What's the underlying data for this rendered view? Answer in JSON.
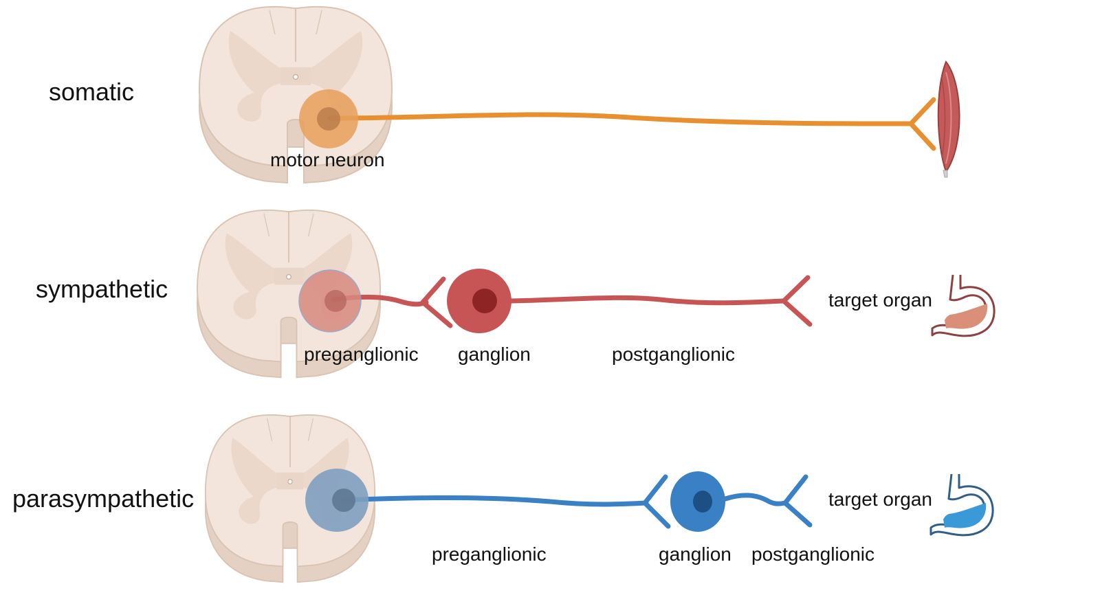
{
  "rows": [
    {
      "label": "somatic",
      "labels": {
        "neuron": "motor neuron"
      },
      "color": "#e8902f"
    },
    {
      "label": "sympathetic",
      "labels": {
        "pre": "preganglionic",
        "ganglion": "ganglion",
        "post": "postganglionic",
        "target": "target organ"
      },
      "color": "#c85555"
    },
    {
      "label": "parasympathetic",
      "labels": {
        "pre": "preganglionic",
        "ganglion": "ganglion",
        "post": "postganglionic",
        "target": "target organ"
      },
      "color": "#3a80c4"
    }
  ],
  "colors": {
    "cord_fill": "#f2e3d8",
    "cord_gray": "#e6d3c5",
    "cord_edge": "#d9c3b3",
    "muscle": "#c45a5a",
    "stomach_outline_red": "#8f4040",
    "stomach_fill_red": "#d98f78",
    "stomach_outline_blue": "#2f5f88",
    "stomach_fill_blue": "#3a9ad8"
  },
  "icons": [
    "spinal-cord-icon",
    "muscle-icon",
    "stomach-icon"
  ]
}
